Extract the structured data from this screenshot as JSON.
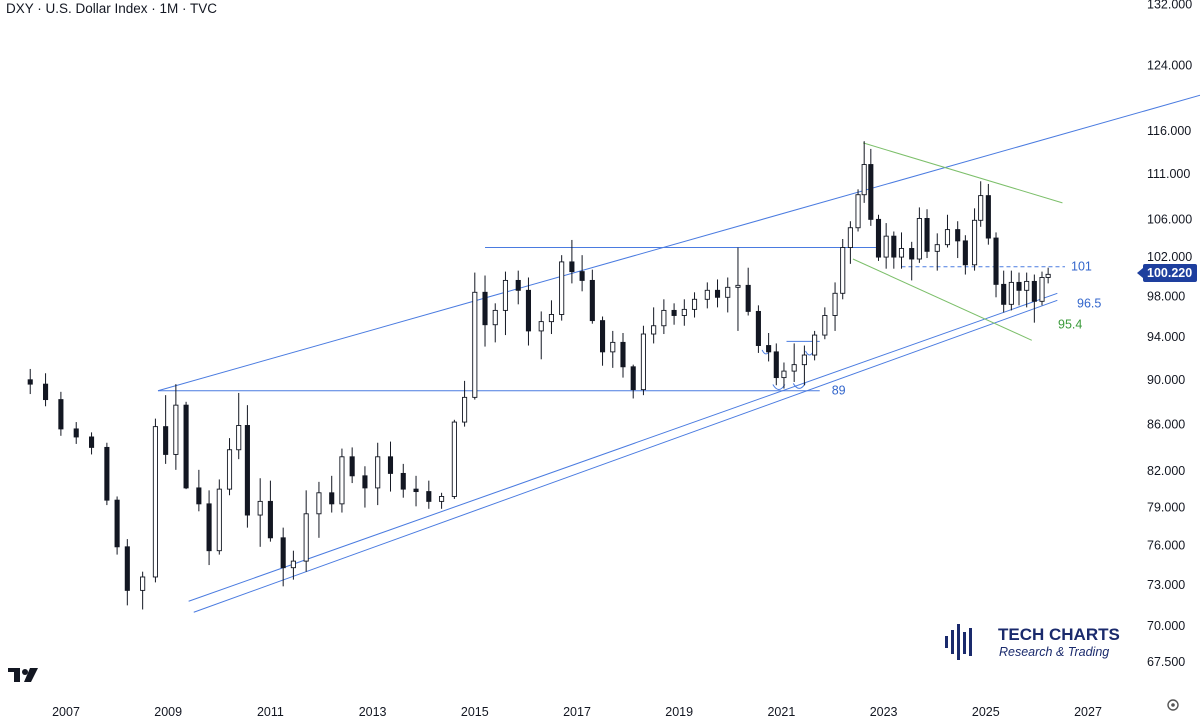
{
  "header": {
    "title": "DXY · U.S. Dollar Index · 1M · TVC"
  },
  "brand": {
    "name": "TECH CHARTS",
    "tagline": "Research & Trading"
  },
  "colors": {
    "channel": "#4a7be0",
    "wedge": "#7cbf6a",
    "candle": "#131722",
    "badge": "#1e3f9e",
    "level_text": "#3366cc",
    "green_text": "#3a9a3a"
  },
  "chart_data": {
    "type": "candlestick",
    "title": "DXY · U.S. Dollar Index · 1M · TVC",
    "x_ticks": [
      "2007",
      "2009",
      "2011",
      "2013",
      "2015",
      "2017",
      "2019",
      "2021",
      "2023",
      "2025",
      "2027"
    ],
    "y_ticks": [
      "132.000",
      "124.000",
      "116.000",
      "111.000",
      "106.000",
      "102.000",
      "98.000",
      "94.000",
      "90.000",
      "86.000",
      "82.000",
      "79.000",
      "76.000",
      "73.000",
      "70.000",
      "67.500"
    ],
    "y_scale": "log",
    "last_price": "100.220",
    "levels": [
      {
        "label": "101",
        "value": 101,
        "color": "#3366cc"
      },
      {
        "label": "96.5",
        "value": 96.5,
        "color": "#3366cc"
      },
      {
        "label": "95.4",
        "value": 95.4,
        "color": "#3a9a3a"
      },
      {
        "label": "89",
        "value": 89,
        "color": "#3366cc"
      }
    ],
    "series": [
      {
        "values": [
          [
            2006.3,
            90,
            91,
            88.7,
            89.6
          ],
          [
            2006.6,
            89.6,
            90.6,
            87.6,
            88.2
          ],
          [
            2006.9,
            88.2,
            88.9,
            85,
            85.6
          ],
          [
            2007.2,
            85.6,
            86.2,
            84.3,
            84.9
          ],
          [
            2007.5,
            84.9,
            85.3,
            83.4,
            84.0
          ],
          [
            2007.8,
            84.0,
            84.4,
            79.2,
            79.6
          ],
          [
            2008.0,
            79.6,
            79.9,
            75.3,
            75.9
          ],
          [
            2008.2,
            75.9,
            76.5,
            71.5,
            72.6
          ],
          [
            2008.5,
            72.6,
            74,
            71.2,
            73.6
          ],
          [
            2008.75,
            73.6,
            86.5,
            73.2,
            85.8
          ],
          [
            2008.95,
            85.8,
            88.6,
            82.6,
            83.4
          ],
          [
            2009.15,
            83.4,
            89.6,
            82.1,
            87.7
          ],
          [
            2009.35,
            87.7,
            88,
            80.5,
            80.6
          ],
          [
            2009.6,
            80.6,
            82.1,
            78.7,
            79.3
          ],
          [
            2009.8,
            79.3,
            80.4,
            74.5,
            75.6
          ],
          [
            2010.0,
            75.6,
            81.3,
            75.3,
            80.5
          ],
          [
            2010.2,
            80.5,
            84.8,
            80,
            83.8
          ],
          [
            2010.38,
            83.8,
            88.8,
            83,
            85.9
          ],
          [
            2010.55,
            85.9,
            87.7,
            77.4,
            78.4
          ],
          [
            2010.8,
            78.4,
            81.4,
            75.9,
            79.5
          ],
          [
            2011.0,
            79.5,
            81.2,
            76.3,
            76.6
          ],
          [
            2011.25,
            76.6,
            77.4,
            72.9,
            74.3
          ],
          [
            2011.45,
            74.3,
            75.6,
            73.4,
            74.8
          ],
          [
            2011.7,
            74.8,
            80.4,
            74,
            78.5
          ],
          [
            2011.95,
            78.5,
            81.1,
            76.6,
            80.2
          ],
          [
            2012.2,
            80.2,
            81.6,
            78.6,
            79.3
          ],
          [
            2012.4,
            79.3,
            83.9,
            78.6,
            83.2
          ],
          [
            2012.6,
            83.2,
            84,
            81,
            81.6
          ],
          [
            2012.85,
            81.6,
            82.4,
            79,
            80.6
          ],
          [
            2013.1,
            80.6,
            84.4,
            79.2,
            83.2
          ],
          [
            2013.35,
            83.2,
            84.5,
            80.3,
            81.8
          ],
          [
            2013.6,
            81.8,
            82.6,
            79.8,
            80.5
          ],
          [
            2013.85,
            80.5,
            81.6,
            79.1,
            80.3
          ],
          [
            2014.1,
            80.3,
            81.2,
            78.9,
            79.5
          ],
          [
            2014.35,
            79.5,
            80.2,
            78.9,
            79.9
          ],
          [
            2014.6,
            79.9,
            86.4,
            79.7,
            86.2
          ],
          [
            2014.8,
            86.2,
            89.9,
            85.8,
            88.4
          ],
          [
            2015.0,
            88.4,
            100.4,
            88.2,
            98.4
          ],
          [
            2015.2,
            98.4,
            100.1,
            93.1,
            95.2
          ],
          [
            2015.4,
            95.2,
            97.3,
            93.5,
            96.6
          ],
          [
            2015.6,
            96.6,
            100.5,
            94.2,
            99.6
          ],
          [
            2015.85,
            99.6,
            100.6,
            97.2,
            98.6
          ],
          [
            2016.05,
            98.6,
            99.9,
            93.2,
            94.6
          ],
          [
            2016.3,
            94.6,
            96.5,
            91.9,
            95.5
          ],
          [
            2016.5,
            95.5,
            97.6,
            94.3,
            96.2
          ],
          [
            2016.7,
            96.2,
            102.2,
            95.6,
            101.5
          ],
          [
            2016.9,
            101.5,
            103.8,
            99.3,
            100.5
          ],
          [
            2017.1,
            100.5,
            102.2,
            98.5,
            99.6
          ],
          [
            2017.3,
            99.6,
            100.7,
            95.3,
            95.6
          ],
          [
            2017.5,
            95.6,
            96,
            91.3,
            92.6
          ],
          [
            2017.7,
            92.6,
            94.6,
            91.1,
            93.5
          ],
          [
            2017.9,
            93.5,
            94.4,
            90.2,
            91.2
          ],
          [
            2018.1,
            91.2,
            91.4,
            88.3,
            89.1
          ],
          [
            2018.3,
            89.1,
            95.1,
            88.6,
            94.3
          ],
          [
            2018.5,
            94.3,
            96.9,
            93.4,
            95.1
          ],
          [
            2018.7,
            95.1,
            97.7,
            94.3,
            96.6
          ],
          [
            2018.9,
            96.6,
            97.3,
            95.2,
            96.1
          ],
          [
            2019.1,
            96.1,
            97.7,
            95.1,
            96.7
          ],
          [
            2019.3,
            96.7,
            98.4,
            95.9,
            97.7
          ],
          [
            2019.55,
            97.7,
            99.4,
            96.8,
            98.6
          ],
          [
            2019.75,
            98.6,
            99.7,
            96.9,
            97.9
          ],
          [
            2019.95,
            97.9,
            99.9,
            96.4,
            98.9
          ],
          [
            2020.15,
            98.9,
            103,
            94.6,
            99.1
          ],
          [
            2020.35,
            99.1,
            100.9,
            96.1,
            96.5
          ],
          [
            2020.55,
            96.5,
            97.1,
            92.5,
            93.2
          ],
          [
            2020.75,
            93.2,
            94.4,
            91.7,
            92.6
          ],
          [
            2020.9,
            92.6,
            93.4,
            89.5,
            90.2
          ],
          [
            2021.05,
            90.2,
            91.6,
            89.2,
            90.8
          ],
          [
            2021.25,
            90.8,
            93.4,
            89.8,
            91.4
          ],
          [
            2021.45,
            91.4,
            93.2,
            89.5,
            92.3
          ],
          [
            2021.65,
            92.3,
            94.6,
            91.8,
            94.2
          ],
          [
            2021.85,
            94.2,
            96.9,
            93.8,
            96.1
          ],
          [
            2022.05,
            96.1,
            99.4,
            94.6,
            98.3
          ],
          [
            2022.2,
            98.3,
            103.9,
            97.7,
            103.0
          ],
          [
            2022.35,
            103.0,
            105.8,
            101.3,
            105.1
          ],
          [
            2022.5,
            105.1,
            109.3,
            104.7,
            108.7
          ],
          [
            2022.62,
            108.7,
            114.8,
            107.8,
            112.1
          ],
          [
            2022.75,
            112.1,
            113.9,
            105.3,
            106.0
          ],
          [
            2022.9,
            106.0,
            106.5,
            101.6,
            102.0
          ],
          [
            2023.05,
            102.0,
            105.6,
            100.8,
            104.2
          ],
          [
            2023.2,
            104.2,
            104.7,
            100.8,
            102.0
          ],
          [
            2023.35,
            102.0,
            104.6,
            100.8,
            102.9
          ],
          [
            2023.55,
            102.9,
            103.6,
            99.6,
            101.8
          ],
          [
            2023.7,
            101.8,
            107.3,
            101.4,
            106.1
          ],
          [
            2023.85,
            106.1,
            107.1,
            101.9,
            102.6
          ],
          [
            2024.05,
            102.6,
            104.5,
            100.6,
            103.3
          ],
          [
            2024.25,
            103.3,
            106.5,
            103.0,
            104.9
          ],
          [
            2024.45,
            104.9,
            105.8,
            101.9,
            103.7
          ],
          [
            2024.6,
            103.7,
            104.3,
            100.2,
            101.2
          ],
          [
            2024.78,
            101.2,
            107.2,
            100.6,
            105.9
          ],
          [
            2024.9,
            105.9,
            110.2,
            105.2,
            108.6
          ],
          [
            2025.05,
            108.6,
            109.9,
            103.3,
            104.0
          ],
          [
            2025.2,
            104.0,
            104.6,
            97.9,
            99.2
          ],
          [
            2025.35,
            99.2,
            100.6,
            96.4,
            97.2
          ],
          [
            2025.5,
            97.2,
            100.6,
            96.6,
            99.4
          ],
          [
            2025.65,
            99.4,
            100.4,
            97.1,
            98.6
          ],
          [
            2025.8,
            98.6,
            100.4,
            96.9,
            99.5
          ],
          [
            2025.95,
            99.5,
            100.2,
            95.4,
            97.5
          ],
          [
            2026.1,
            97.5,
            100.5,
            97.1,
            99.9
          ],
          [
            2026.22,
            99.9,
            100.9,
            99.3,
            100.22
          ]
        ]
      }
    ]
  }
}
